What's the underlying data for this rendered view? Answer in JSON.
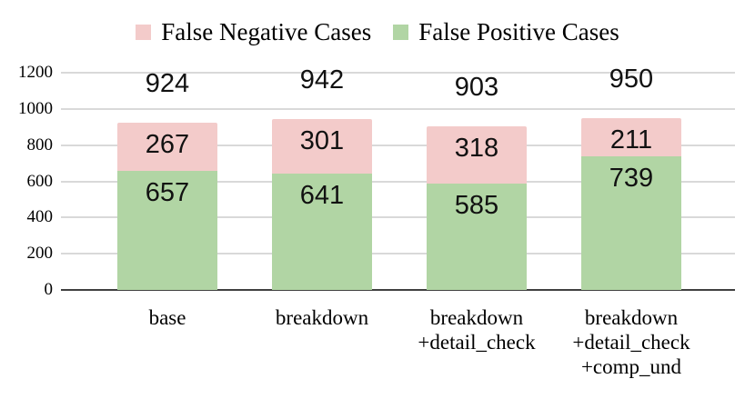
{
  "chart_data": {
    "type": "bar",
    "stacked": true,
    "title": "",
    "xlabel": "",
    "ylabel": "",
    "categories": [
      "base",
      "breakdown",
      "breakdown\n+detail_check",
      "breakdown\n+detail_check\n+comp_und"
    ],
    "series": [
      {
        "name": "False Positive Cases",
        "color": "#b1d5a4",
        "values": [
          657,
          641,
          585,
          739
        ]
      },
      {
        "name": "False Negative Cases",
        "color": "#f3cbca",
        "values": [
          267,
          301,
          318,
          211
        ]
      }
    ],
    "totals": [
      924,
      942,
      903,
      950
    ],
    "y_ticks": [
      0,
      200,
      400,
      600,
      800,
      1000,
      1200
    ],
    "ylim": [
      0,
      1200
    ],
    "grid": "horizontal",
    "legend_position": "top"
  },
  "legend": {
    "items": [
      {
        "label": "False Negative Cases",
        "color": "#f3cbca"
      },
      {
        "label": "False Positive Cases",
        "color": "#b1d5a4"
      }
    ]
  },
  "colors": {
    "gridline": "#d9d9d9",
    "axis_line": "#404040",
    "text": "#000000",
    "background": "#ffffff"
  }
}
